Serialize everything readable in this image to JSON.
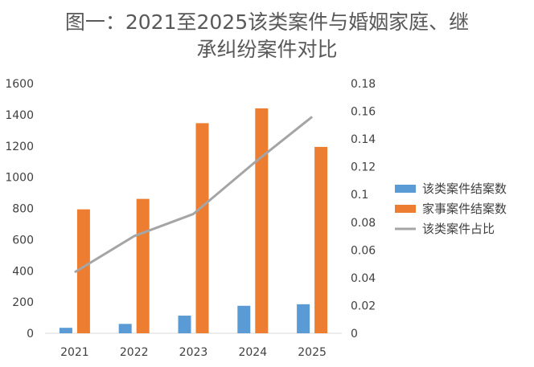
{
  "chart_data": {
    "type": "bar",
    "title_line1": "图一：2021至2025该类案件与婚姻家庭、继",
    "title_line2": "承纠纷案件对比",
    "categories": [
      "2021",
      "2022",
      "2023",
      "2024",
      "2025"
    ],
    "y_left": {
      "lim": [
        0,
        1600
      ],
      "ticks": [
        "0",
        "200",
        "400",
        "600",
        "800",
        "1000",
        "1200",
        "1400",
        "1600"
      ]
    },
    "y_right": {
      "lim": [
        0,
        0.18
      ],
      "ticks": [
        "0",
        "0.02",
        "0.04",
        "0.06",
        "0.08",
        "0.1",
        "0.12",
        "0.14",
        "0.16",
        "0.18"
      ]
    },
    "series": [
      {
        "name": "该类案件结案数",
        "type": "bar",
        "axis": "left",
        "color": "#5b9bd5",
        "values": [
          35,
          60,
          113,
          176,
          186
        ]
      },
      {
        "name": "家事案件结案数",
        "type": "bar",
        "axis": "left",
        "color": "#ed7d31",
        "values": [
          794,
          861,
          1346,
          1441,
          1194
        ]
      },
      {
        "name": "该类案件占比",
        "type": "line",
        "axis": "right",
        "color": "#a5a5a5",
        "values": [
          0.044,
          0.07,
          0.086,
          0.122,
          0.156
        ]
      }
    ],
    "legend_position": "right",
    "grid": false
  }
}
